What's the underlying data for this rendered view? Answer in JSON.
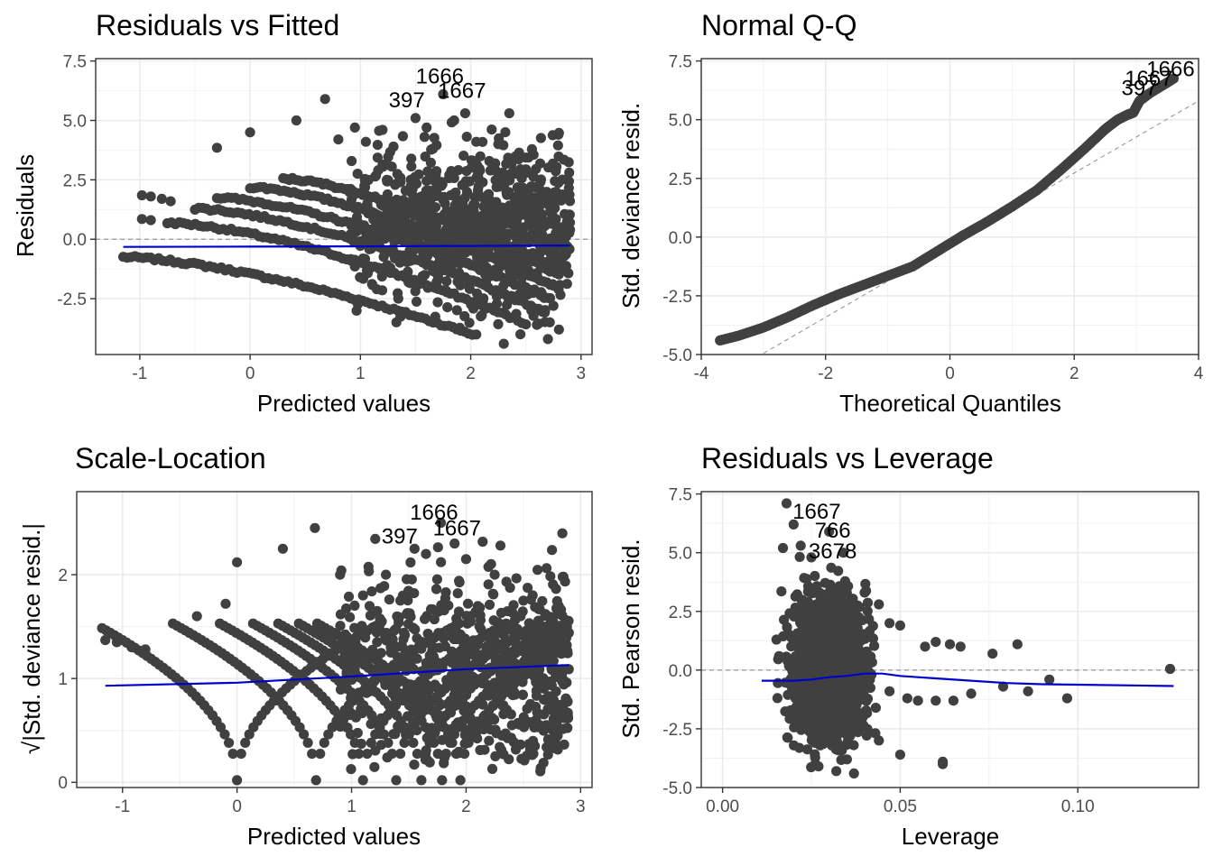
{
  "figure": {
    "background": "#ffffff",
    "point_color": "#404040",
    "smooth_color": "#0000cc",
    "refline_color": "#999999"
  },
  "chart_data": [
    {
      "id": "rvf",
      "type": "scatter",
      "title": "Residuals vs Fitted",
      "xlabel": "Predicted values",
      "ylabel": "Residuals",
      "xlim": [
        -1.4,
        3.1
      ],
      "ylim": [
        -4.85,
        7.6
      ],
      "xticks": [
        -1,
        0,
        1,
        2,
        3
      ],
      "xtick_labels": [
        "-1",
        "0",
        "1",
        "2",
        "3"
      ],
      "yticks": [
        -2.5,
        0,
        2.5,
        5,
        7.5
      ],
      "ytick_labels": [
        "-2.5",
        "0.0",
        "2.5",
        "5.0",
        "7.5"
      ],
      "grid": true,
      "reference_line": {
        "orientation": "horizontal",
        "value": 0,
        "style": "dashed"
      },
      "smooth": {
        "x": [
          -1.15,
          0,
          1,
          2,
          2.9
        ],
        "y": [
          -0.32,
          -0.31,
          -0.3,
          -0.28,
          -0.26
        ]
      },
      "bands": [
        {
          "x": [
            -1.15,
            2.05
          ],
          "y": [
            -0.75,
            -4.05
          ]
        },
        {
          "x": [
            -0.75,
            2.5
          ],
          "y": [
            0.7,
            -3.55
          ]
        },
        {
          "x": [
            -0.5,
            2.65
          ],
          "y": [
            1.3,
            -3.0
          ]
        },
        {
          "x": [
            -0.3,
            2.7
          ],
          "y": [
            1.75,
            -2.5
          ]
        },
        {
          "x": [
            0.0,
            2.75
          ],
          "y": [
            2.2,
            -2.0
          ]
        },
        {
          "x": [
            0.3,
            2.8
          ],
          "y": [
            2.55,
            -1.5
          ]
        }
      ],
      "cloud": {
        "x_range": [
          0.9,
          2.9
        ],
        "y_center": 0.6,
        "y_spread": 2.6
      },
      "points": [
        [
          -0.98,
          1.85
        ],
        [
          -0.9,
          1.8
        ],
        [
          -0.8,
          1.7
        ],
        [
          -0.72,
          1.6
        ],
        [
          -0.98,
          0.85
        ],
        [
          -0.9,
          0.8
        ],
        [
          -0.3,
          3.85
        ],
        [
          0.0,
          4.5
        ],
        [
          0.42,
          5.0
        ],
        [
          0.68,
          5.9
        ],
        [
          0.8,
          4.2
        ],
        [
          0.95,
          4.7
        ],
        [
          1.05,
          4.1
        ],
        [
          1.2,
          4.6
        ],
        [
          1.3,
          3.9
        ],
        [
          1.5,
          5.1
        ],
        [
          1.6,
          4.7
        ],
        [
          1.75,
          6.1
        ],
        [
          1.85,
          5.0
        ],
        [
          1.95,
          5.3
        ],
        [
          2.05,
          4.1
        ],
        [
          2.25,
          4.0
        ],
        [
          2.35,
          5.3
        ],
        [
          2.5,
          2.8
        ],
        [
          2.65,
          2.0
        ],
        [
          2.9,
          0.4
        ],
        [
          2.85,
          -0.7
        ],
        [
          2.8,
          -3.8
        ],
        [
          2.7,
          -4.2
        ],
        [
          2.3,
          -4.4
        ],
        [
          2.45,
          -4.0
        ],
        [
          2.6,
          -3.6
        ],
        [
          2.1,
          -3.2
        ],
        [
          2.75,
          -2.8
        ],
        [
          2.55,
          -3.0
        ]
      ],
      "annotations": [
        {
          "text": "1666",
          "x": 1.72,
          "y": 6.55
        },
        {
          "text": "1667",
          "x": 1.92,
          "y": 5.95
        },
        {
          "text": "397",
          "x": 1.42,
          "y": 5.55
        }
      ]
    },
    {
      "id": "qq",
      "type": "scatter",
      "title": "Normal Q-Q",
      "xlabel": "Theoretical Quantiles",
      "ylabel": "Std. deviance resid.",
      "xlim": [
        -4,
        4
      ],
      "ylim": [
        -5,
        7.6
      ],
      "xticks": [
        -4,
        -2,
        0,
        2,
        4
      ],
      "xtick_labels": [
        "-4",
        "-2",
        "0",
        "2",
        "4"
      ],
      "yticks": [
        -5,
        -2.5,
        0,
        2.5,
        5,
        7.5
      ],
      "ytick_labels": [
        "-5.0",
        "-2.5",
        "0.0",
        "2.5",
        "5.0",
        "7.5"
      ],
      "grid": true,
      "reference_line": {
        "orientation": "diagonal",
        "x": [
          -3.0,
          4.0
        ],
        "y": [
          -4.95,
          5.8
        ],
        "style": "dashed"
      },
      "curve": {
        "x": [
          -3.7,
          -3.4,
          -3.0,
          -2.6,
          -2.2,
          -1.8,
          -1.4,
          -1.0,
          -0.6,
          -0.2,
          0.2,
          0.6,
          1.0,
          1.4,
          1.8,
          2.2,
          2.5,
          2.7,
          2.85,
          2.95,
          3.05,
          3.2,
          3.6
        ],
        "y": [
          -4.4,
          -4.2,
          -3.85,
          -3.4,
          -2.9,
          -2.45,
          -2.05,
          -1.65,
          -1.25,
          -0.6,
          0.05,
          0.65,
          1.3,
          2.0,
          2.9,
          3.85,
          4.6,
          5.0,
          5.2,
          5.3,
          5.8,
          6.1,
          6.75
        ]
      },
      "annotations": [
        {
          "text": "1666",
          "x": 3.55,
          "y": 6.85
        },
        {
          "text": "1667",
          "x": 3.2,
          "y": 6.45
        },
        {
          "text": "397",
          "x": 3.05,
          "y": 6.05
        }
      ]
    },
    {
      "id": "sl",
      "type": "scatter",
      "title": "Scale-Location",
      "xlabel": "Predicted values",
      "ylabel": "√|Std. deviance resid.|",
      "xlim": [
        -1.4,
        3.1
      ],
      "ylim": [
        -0.05,
        2.8
      ],
      "xticks": [
        -1,
        0,
        1,
        2,
        3
      ],
      "xtick_labels": [
        "-1",
        "0",
        "1",
        "2",
        "3"
      ],
      "yticks": [
        0,
        1,
        2
      ],
      "ytick_labels": [
        "0",
        "1",
        "2"
      ],
      "grid": true,
      "smooth": {
        "x": [
          -1.15,
          0,
          1,
          2,
          2.9
        ],
        "y": [
          0.93,
          0.96,
          1.02,
          1.09,
          1.13
        ]
      },
      "v_curves": [
        0,
        0.69,
        1.1,
        1.39,
        1.61,
        1.79,
        1.95
      ],
      "points": [
        [
          -1.15,
          1.37
        ],
        [
          -1.05,
          1.35
        ],
        [
          -0.92,
          1.3
        ],
        [
          -0.8,
          1.28
        ],
        [
          -0.35,
          1.6
        ],
        [
          -0.1,
          1.72
        ],
        [
          0.0,
          2.12
        ],
        [
          0.4,
          2.25
        ],
        [
          0.68,
          2.45
        ],
        [
          0.9,
          2.0
        ],
        [
          1.1,
          1.8
        ],
        [
          1.3,
          2.0
        ],
        [
          1.55,
          2.25
        ],
        [
          1.65,
          2.2
        ],
        [
          1.78,
          2.5
        ],
        [
          1.9,
          2.3
        ],
        [
          2.0,
          2.15
        ],
        [
          2.25,
          2.0
        ],
        [
          2.3,
          2.28
        ],
        [
          2.5,
          1.75
        ],
        [
          2.7,
          1.5
        ],
        [
          2.88,
          0.62
        ],
        [
          2.8,
          0.45
        ],
        [
          2.6,
          0.35
        ],
        [
          2.4,
          0.55
        ],
        [
          2.2,
          0.4
        ],
        [
          2.85,
          1.98
        ],
        [
          2.75,
          1.2
        ],
        [
          2.7,
          0.8
        ]
      ],
      "annotations": [
        {
          "text": "1666",
          "x": 1.72,
          "y": 2.53
        },
        {
          "text": "1667",
          "x": 1.92,
          "y": 2.38
        },
        {
          "text": "397",
          "x": 1.42,
          "y": 2.3
        }
      ]
    },
    {
      "id": "rvl",
      "type": "scatter",
      "title": "Residuals vs Leverage",
      "xlabel": "Leverage",
      "ylabel": "Std. Pearson resid.",
      "xlim": [
        -0.006,
        0.134
      ],
      "ylim": [
        -5,
        7.6
      ],
      "xticks": [
        0,
        0.05,
        0.1
      ],
      "xtick_labels": [
        "0.00",
        "0.05",
        "0.10"
      ],
      "yticks": [
        -5,
        -2.5,
        0,
        2.5,
        5,
        7.5
      ],
      "ytick_labels": [
        "-5.0",
        "-2.5",
        "0.0",
        "2.5",
        "5.0",
        "7.5"
      ],
      "grid": true,
      "reference_line": {
        "orientation": "horizontal",
        "value": 0,
        "style": "dashed"
      },
      "smooth": {
        "x": [
          0.011,
          0.02,
          0.025,
          0.03,
          0.035,
          0.04,
          0.045,
          0.05,
          0.055,
          0.06,
          0.07,
          0.08,
          0.09,
          0.1,
          0.127
        ],
        "y": [
          -0.45,
          -0.45,
          -0.4,
          -0.3,
          -0.25,
          -0.15,
          -0.15,
          -0.25,
          -0.3,
          -0.35,
          -0.45,
          -0.55,
          -0.6,
          -0.62,
          -0.68
        ]
      },
      "cloud": {
        "x_range": [
          0.011,
          0.045
        ],
        "y_center": 0.3,
        "y_spread": 2.8
      },
      "points": [
        [
          0.018,
          7.1
        ],
        [
          0.02,
          6.2
        ],
        [
          0.022,
          5.3
        ],
        [
          0.017,
          5.2
        ],
        [
          0.03,
          5.9
        ],
        [
          0.025,
          4.8
        ],
        [
          0.034,
          5.0
        ],
        [
          0.04,
          3.3
        ],
        [
          0.044,
          2.8
        ],
        [
          0.047,
          2.0
        ],
        [
          0.05,
          1.9
        ],
        [
          0.057,
          1.0
        ],
        [
          0.06,
          1.2
        ],
        [
          0.064,
          1.1
        ],
        [
          0.067,
          1.0
        ],
        [
          0.076,
          0.7
        ],
        [
          0.083,
          1.1
        ],
        [
          0.126,
          0.05
        ],
        [
          0.047,
          -0.9
        ],
        [
          0.052,
          -1.2
        ],
        [
          0.055,
          -1.3
        ],
        [
          0.06,
          -1.3
        ],
        [
          0.065,
          -1.3
        ],
        [
          0.07,
          -1.0
        ],
        [
          0.079,
          -0.7
        ],
        [
          0.086,
          -0.9
        ],
        [
          0.092,
          -0.4
        ],
        [
          0.097,
          -1.2
        ],
        [
          0.062,
          -3.9
        ],
        [
          0.062,
          -4.0
        ],
        [
          0.05,
          -3.6
        ],
        [
          0.044,
          -3.0
        ],
        [
          0.032,
          -4.3
        ],
        [
          0.037,
          -4.4
        ],
        [
          0.027,
          -4.1
        ],
        [
          0.035,
          -3.8
        ]
      ],
      "annotations": [
        {
          "text": "1667",
          "x": 0.0265,
          "y": 6.45
        },
        {
          "text": "766",
          "x": 0.031,
          "y": 5.65
        },
        {
          "text": "3678",
          "x": 0.031,
          "y": 4.75
        }
      ]
    }
  ]
}
